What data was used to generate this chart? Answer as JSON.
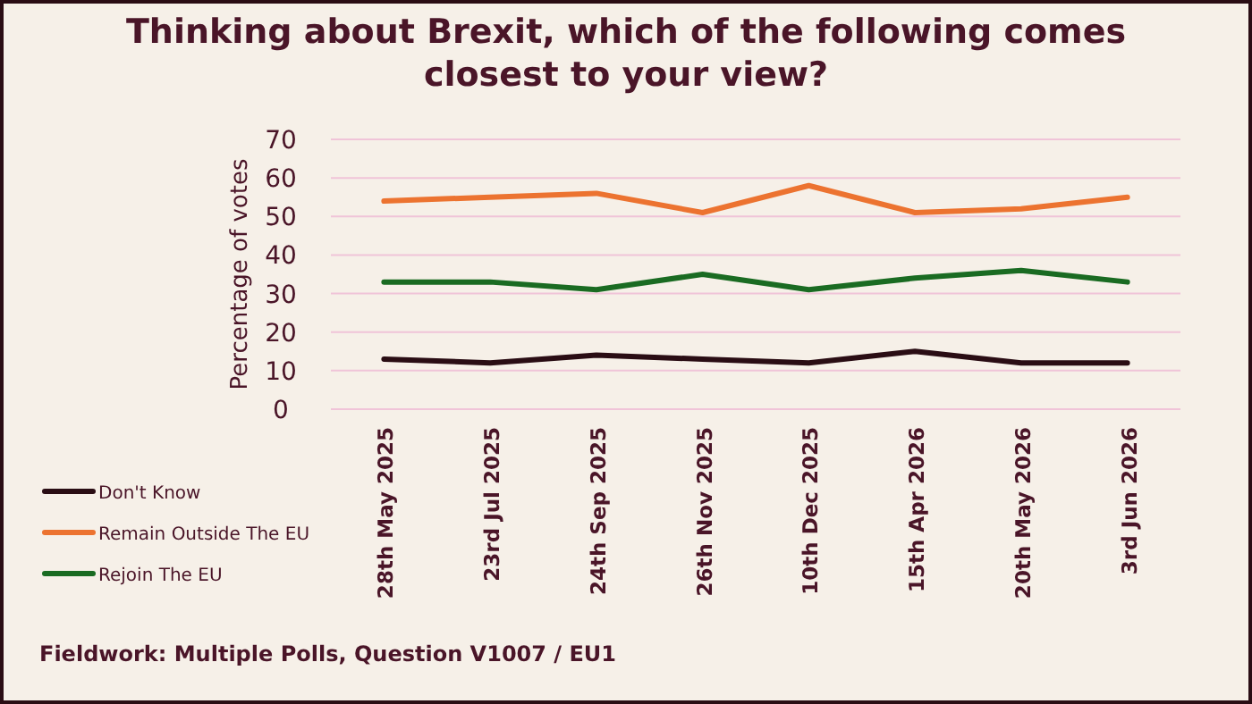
{
  "chart_data": {
    "type": "line",
    "title": "Thinking about Brexit, which of the following comes closest to your view?",
    "ylabel": "Percentage of votes",
    "categories": [
      "28th May 2025",
      "23rd Jul 2025",
      "24th Sep 2025",
      "26th Nov 2025",
      "10th Dec 2025",
      "15th Apr 2026",
      "20th May 2026",
      "3rd Jun 2026"
    ],
    "series": [
      {
        "name": "Don't Know",
        "color": "#2a0d14",
        "values": [
          13,
          12,
          14,
          13,
          12,
          15,
          12,
          12
        ]
      },
      {
        "name": "Remain Outside The EU",
        "color": "#ec7330",
        "values": [
          54,
          55,
          56,
          51,
          58,
          51,
          52,
          55
        ]
      },
      {
        "name": "Rejoin The EU",
        "color": "#1a6b22",
        "values": [
          33,
          33,
          31,
          35,
          31,
          34,
          36,
          33
        ]
      }
    ],
    "ylim": [
      0,
      70
    ],
    "yticks": [
      0,
      10,
      20,
      30,
      40,
      50,
      60,
      70
    ],
    "grid": "y",
    "legend": "left",
    "marker": "none",
    "line_style": "solid",
    "annotations": [
      "Fieldwork: Multiple Polls, Question V1007 / EU1"
    ]
  }
}
